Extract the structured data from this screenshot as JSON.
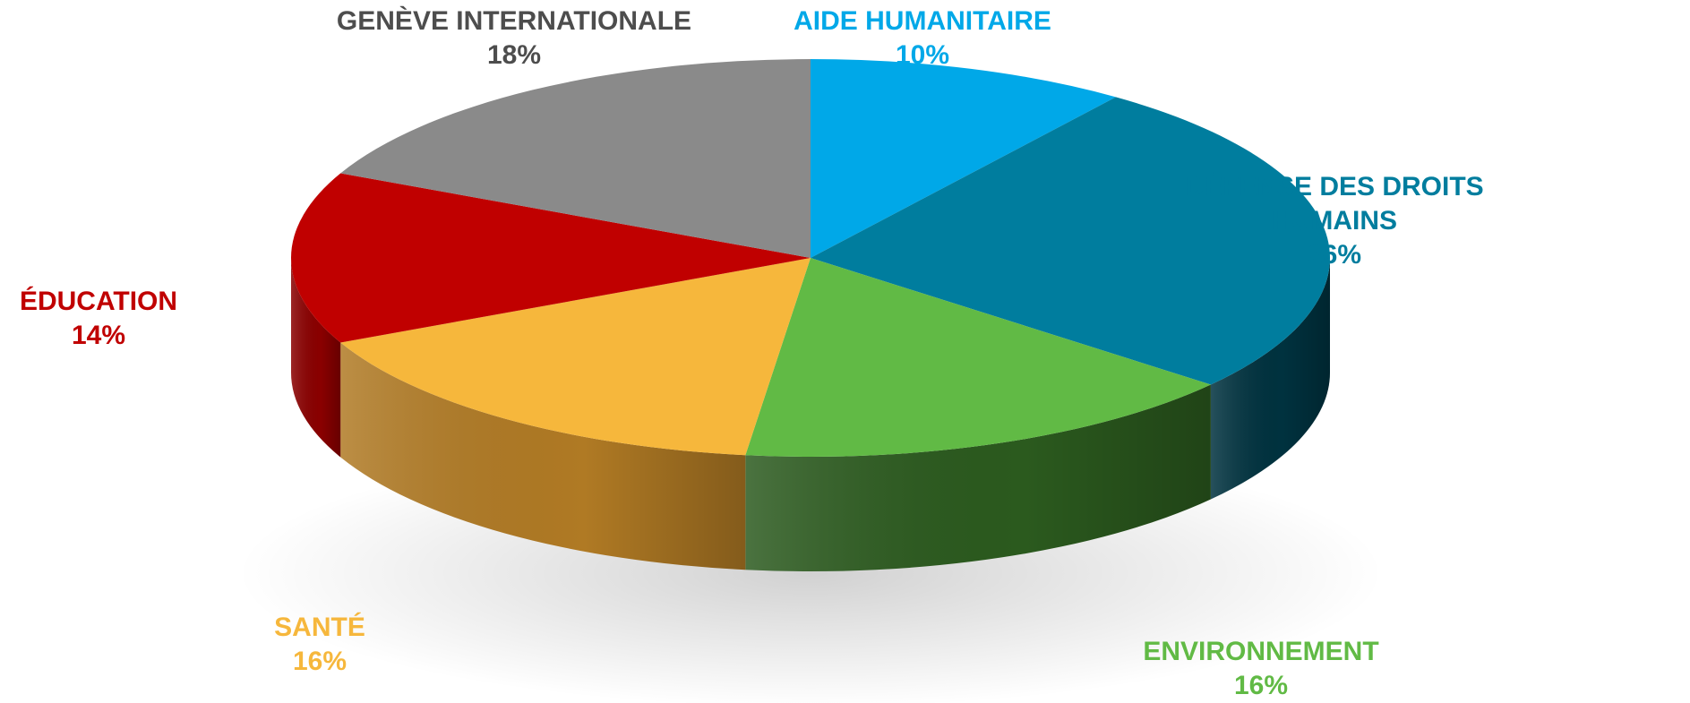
{
  "chart_data": {
    "type": "pie",
    "title": "",
    "slices": [
      {
        "name": "AIDE HUMANITAIRE",
        "value": 10,
        "label": "10%",
        "color": "#00A8E8",
        "side_color": "#0077A8"
      },
      {
        "name": "DÉFENSE DES DROITS HUMAINS",
        "value": 26,
        "label": "26%",
        "color": "#007D9E",
        "side_color": "#00323F"
      },
      {
        "name": "ENVIRONNEMENT",
        "value": 16,
        "label": "16%",
        "color": "#61BA45",
        "side_color": "#2B5A1E"
      },
      {
        "name": "SANTÉ",
        "value": 16,
        "label": "16%",
        "color": "#F6B73C",
        "side_color": "#B07A24"
      },
      {
        "name": "ÉDUCATION",
        "value": 14,
        "label": "14%",
        "color": "#C00000",
        "side_color": "#8A0000"
      },
      {
        "name": "GENÈVE INTERNATIONALE",
        "value": 18,
        "label": "18%",
        "color": "#8A8A8A",
        "side_color": "#5A5A5A"
      }
    ]
  }
}
